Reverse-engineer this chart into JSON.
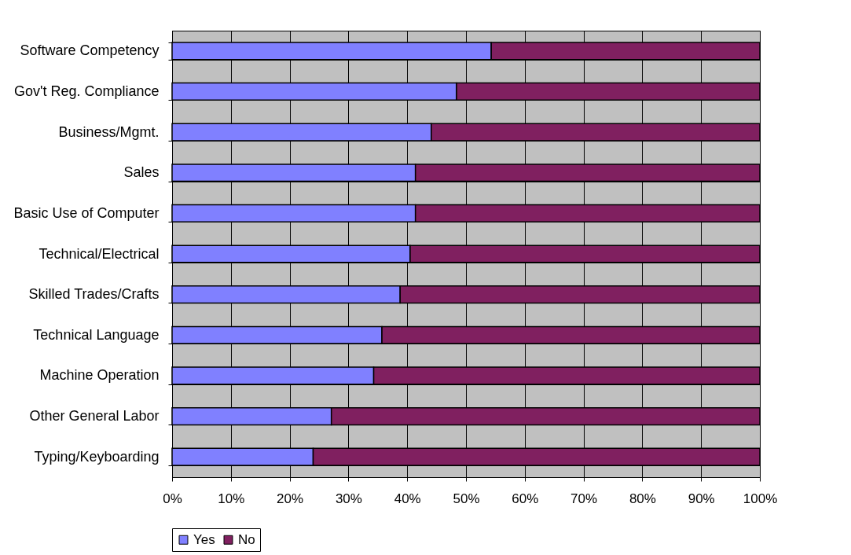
{
  "chart_data": {
    "type": "bar",
    "orientation": "horizontal",
    "stacked": true,
    "categories": [
      "Software Competency",
      "Gov't Reg. Compliance",
      "Business/Mgmt.",
      "Sales",
      "Basic Use of Computer",
      "Technical/Electrical",
      "Skilled Trades/Crafts",
      "Technical Language",
      "Machine Operation",
      "Other General Labor",
      "Typing/Keyboarding"
    ],
    "series": [
      {
        "name": "Yes",
        "color": "#8080ff",
        "values": [
          54.3,
          48.4,
          44.1,
          41.4,
          41.4,
          40.5,
          38.8,
          35.7,
          34.3,
          27.1,
          24.0
        ]
      },
      {
        "name": "No",
        "color": "#802060",
        "values": [
          45.7,
          51.6,
          55.9,
          58.6,
          58.6,
          59.5,
          61.2,
          64.3,
          65.7,
          72.9,
          76.0
        ]
      }
    ],
    "xlim": [
      0,
      100
    ],
    "xticks": [
      {
        "value": 0,
        "label": "0%"
      },
      {
        "value": 10,
        "label": "10%"
      },
      {
        "value": 20,
        "label": "20%"
      },
      {
        "value": 30,
        "label": "30%"
      },
      {
        "value": 40,
        "label": "40%"
      },
      {
        "value": 50,
        "label": "50%"
      },
      {
        "value": 60,
        "label": "60%"
      },
      {
        "value": 70,
        "label": "70%"
      },
      {
        "value": 80,
        "label": "80%"
      },
      {
        "value": 90,
        "label": "90%"
      },
      {
        "value": 100,
        "label": "100%"
      }
    ],
    "grid": true,
    "legend": "bottom"
  }
}
